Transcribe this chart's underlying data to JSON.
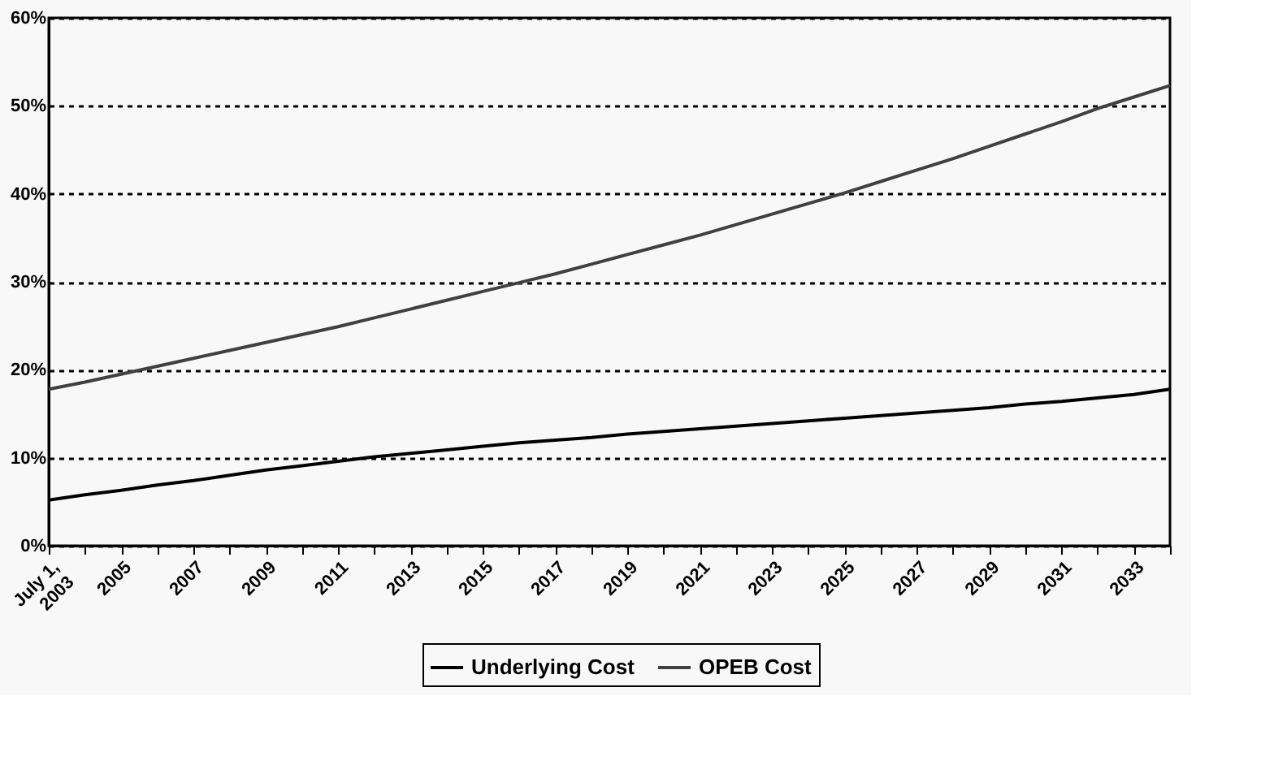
{
  "chart_data": {
    "type": "line",
    "categories": [
      "July 1,\n2003",
      null,
      "2005",
      null,
      "2007",
      null,
      "2009",
      null,
      "2011",
      null,
      "2013",
      null,
      "2015",
      null,
      "2017",
      null,
      "2019",
      null,
      "2021",
      null,
      "2023",
      null,
      "2025",
      null,
      "2027",
      null,
      "2029",
      null,
      "2031",
      null,
      "2033",
      null
    ],
    "series": [
      {
        "name": "Underlying Cost",
        "color": "#000000",
        "values": [
          5.2,
          5.8,
          6.3,
          6.9,
          7.4,
          8.0,
          8.6,
          9.1,
          9.6,
          10.1,
          10.5,
          10.9,
          11.3,
          11.7,
          12.0,
          12.3,
          12.7,
          13.0,
          13.3,
          13.6,
          13.9,
          14.2,
          14.5,
          14.8,
          15.1,
          15.4,
          15.7,
          16.1,
          16.4,
          16.8,
          17.2,
          17.8
        ]
      },
      {
        "name": "OPEB Cost",
        "color": "#404040",
        "values": [
          17.8,
          18.6,
          19.5,
          20.4,
          21.3,
          22.2,
          23.1,
          24.0,
          24.9,
          25.9,
          26.9,
          27.9,
          28.9,
          29.9,
          30.9,
          32.0,
          33.1,
          34.2,
          35.3,
          36.5,
          37.7,
          38.9,
          40.1,
          41.4,
          42.7,
          44.0,
          45.4,
          46.8,
          48.2,
          49.7,
          51.0,
          52.3
        ]
      }
    ],
    "ylim": [
      0,
      60
    ],
    "yticks": [
      {
        "value": 0,
        "label": "0%"
      },
      {
        "value": 10,
        "label": "10%"
      },
      {
        "value": 20,
        "label": "20%"
      },
      {
        "value": 30,
        "label": "30%"
      },
      {
        "value": 40,
        "label": "40%"
      },
      {
        "value": 50,
        "label": "50%"
      },
      {
        "value": 60,
        "label": "60%"
      }
    ],
    "grid": "y",
    "legend": "bottom",
    "marker": "none",
    "line_style": "solid"
  }
}
